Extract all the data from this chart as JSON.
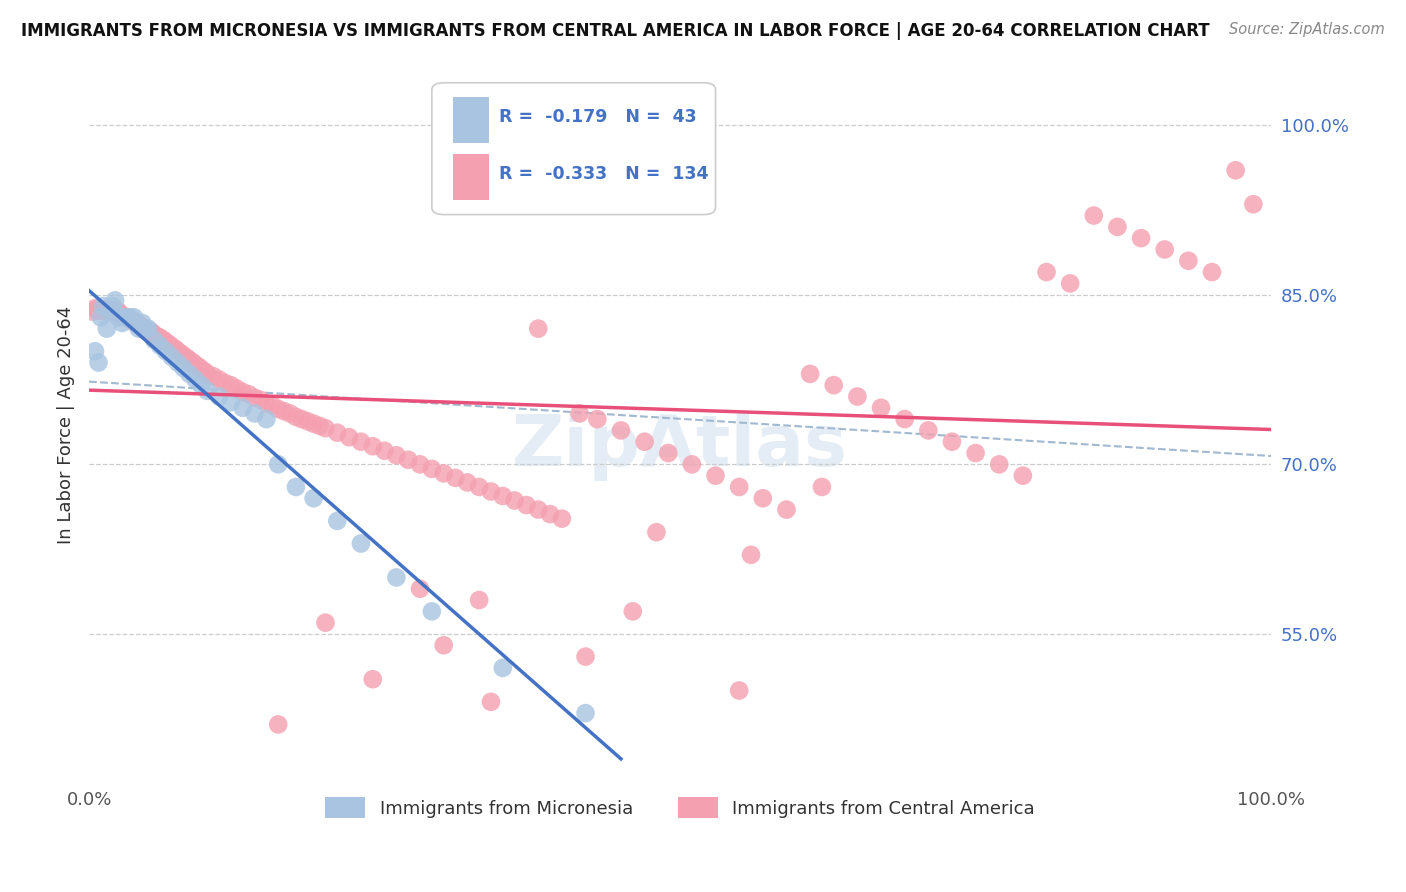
{
  "title": "IMMIGRANTS FROM MICRONESIA VS IMMIGRANTS FROM CENTRAL AMERICA IN LABOR FORCE | AGE 20-64 CORRELATION CHART",
  "source": "Source: ZipAtlas.com",
  "ylabel": "In Labor Force | Age 20-64",
  "ytick_labels": [
    "55.0%",
    "70.0%",
    "85.0%",
    "100.0%"
  ],
  "ytick_values": [
    0.55,
    0.7,
    0.85,
    1.0
  ],
  "xlim": [
    0.0,
    1.0
  ],
  "ylim": [
    0.42,
    1.05
  ],
  "legend_r_micro": "-0.179",
  "legend_n_micro": "43",
  "legend_r_central": "-0.333",
  "legend_n_central": "134",
  "color_micro": "#a8c4e0",
  "color_central": "#f4a0b0",
  "color_micro_line": "#4472c4",
  "color_central_line": "#e8507a",
  "color_trend_dash": "#a0b8d0",
  "watermark": "ZipAtlas",
  "micronesia_x": [
    0.005,
    0.008,
    0.01,
    0.012,
    0.015,
    0.018,
    0.02,
    0.022,
    0.025,
    0.028,
    0.03,
    0.032,
    0.035,
    0.038,
    0.04,
    0.042,
    0.045,
    0.048,
    0.05,
    0.055,
    0.06,
    0.065,
    0.07,
    0.075,
    0.08,
    0.085,
    0.09,
    0.095,
    0.1,
    0.11,
    0.12,
    0.13,
    0.14,
    0.15,
    0.16,
    0.175,
    0.19,
    0.21,
    0.23,
    0.26,
    0.29,
    0.35,
    0.42
  ],
  "micronesia_y": [
    0.8,
    0.79,
    0.83,
    0.84,
    0.82,
    0.835,
    0.84,
    0.845,
    0.83,
    0.825,
    0.83,
    0.83,
    0.83,
    0.83,
    0.825,
    0.82,
    0.825,
    0.82,
    0.82,
    0.81,
    0.805,
    0.8,
    0.795,
    0.79,
    0.785,
    0.78,
    0.775,
    0.77,
    0.765,
    0.76,
    0.755,
    0.75,
    0.745,
    0.74,
    0.7,
    0.68,
    0.67,
    0.65,
    0.63,
    0.6,
    0.57,
    0.52,
    0.48
  ],
  "central_x": [
    0.003,
    0.005,
    0.007,
    0.008,
    0.01,
    0.012,
    0.013,
    0.015,
    0.016,
    0.018,
    0.019,
    0.02,
    0.021,
    0.022,
    0.024,
    0.025,
    0.027,
    0.028,
    0.03,
    0.032,
    0.033,
    0.035,
    0.037,
    0.038,
    0.04,
    0.042,
    0.044,
    0.045,
    0.047,
    0.05,
    0.053,
    0.055,
    0.058,
    0.06,
    0.063,
    0.065,
    0.068,
    0.07,
    0.073,
    0.075,
    0.078,
    0.08,
    0.083,
    0.085,
    0.088,
    0.09,
    0.093,
    0.095,
    0.098,
    0.1,
    0.105,
    0.11,
    0.115,
    0.12,
    0.125,
    0.13,
    0.135,
    0.14,
    0.145,
    0.15,
    0.155,
    0.16,
    0.165,
    0.17,
    0.175,
    0.18,
    0.185,
    0.19,
    0.195,
    0.2,
    0.21,
    0.22,
    0.23,
    0.24,
    0.25,
    0.26,
    0.27,
    0.28,
    0.29,
    0.3,
    0.31,
    0.32,
    0.33,
    0.34,
    0.35,
    0.36,
    0.37,
    0.38,
    0.39,
    0.4,
    0.415,
    0.43,
    0.45,
    0.47,
    0.49,
    0.51,
    0.53,
    0.55,
    0.57,
    0.59,
    0.61,
    0.63,
    0.65,
    0.67,
    0.69,
    0.71,
    0.73,
    0.75,
    0.77,
    0.79,
    0.81,
    0.83,
    0.85,
    0.87,
    0.89,
    0.91,
    0.93,
    0.95,
    0.97,
    0.985,
    0.46,
    0.33,
    0.28,
    0.2,
    0.38,
    0.48,
    0.56,
    0.62,
    0.34,
    0.24,
    0.16,
    0.55,
    0.42,
    0.3
  ],
  "central_y": [
    0.835,
    0.838,
    0.837,
    0.836,
    0.836,
    0.836,
    0.836,
    0.838,
    0.837,
    0.836,
    0.835,
    0.836,
    0.836,
    0.835,
    0.835,
    0.835,
    0.832,
    0.831,
    0.831,
    0.83,
    0.829,
    0.828,
    0.827,
    0.826,
    0.825,
    0.824,
    0.822,
    0.821,
    0.82,
    0.818,
    0.817,
    0.815,
    0.813,
    0.812,
    0.81,
    0.808,
    0.806,
    0.804,
    0.802,
    0.8,
    0.798,
    0.796,
    0.794,
    0.792,
    0.79,
    0.788,
    0.786,
    0.784,
    0.782,
    0.78,
    0.778,
    0.775,
    0.772,
    0.77,
    0.767,
    0.764,
    0.762,
    0.759,
    0.757,
    0.754,
    0.752,
    0.749,
    0.747,
    0.745,
    0.742,
    0.74,
    0.738,
    0.736,
    0.734,
    0.732,
    0.728,
    0.724,
    0.72,
    0.716,
    0.712,
    0.708,
    0.704,
    0.7,
    0.696,
    0.692,
    0.688,
    0.684,
    0.68,
    0.676,
    0.672,
    0.668,
    0.664,
    0.66,
    0.656,
    0.652,
    0.745,
    0.74,
    0.73,
    0.72,
    0.71,
    0.7,
    0.69,
    0.68,
    0.67,
    0.66,
    0.78,
    0.77,
    0.76,
    0.75,
    0.74,
    0.73,
    0.72,
    0.71,
    0.7,
    0.69,
    0.87,
    0.86,
    0.92,
    0.91,
    0.9,
    0.89,
    0.88,
    0.87,
    0.96,
    0.93,
    0.57,
    0.58,
    0.59,
    0.56,
    0.82,
    0.64,
    0.62,
    0.68,
    0.49,
    0.51,
    0.47,
    0.5,
    0.53,
    0.54
  ]
}
